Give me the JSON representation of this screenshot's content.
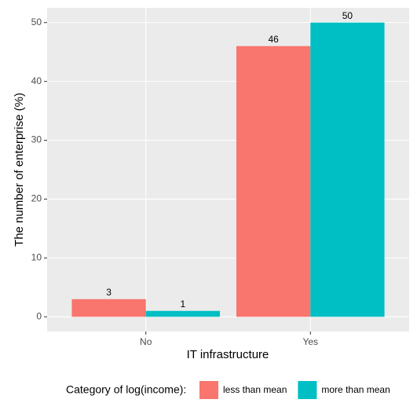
{
  "chart_data": {
    "type": "bar",
    "x_label": "IT infrastructure",
    "y_label": "The number of enterprise (%)",
    "categories": [
      "No",
      "Yes"
    ],
    "series": [
      {
        "name": "less than mean",
        "color": "#F8766D",
        "values": [
          3,
          46
        ]
      },
      {
        "name": "more than mean",
        "color": "#00BFC4",
        "values": [
          1,
          50
        ]
      }
    ],
    "legend_title": "Category of log(income):",
    "legend_position": "bottom",
    "ylim": [
      -2.5,
      52.5
    ],
    "yticks": [
      0,
      10,
      20,
      30,
      40,
      50
    ],
    "grid": true
  }
}
